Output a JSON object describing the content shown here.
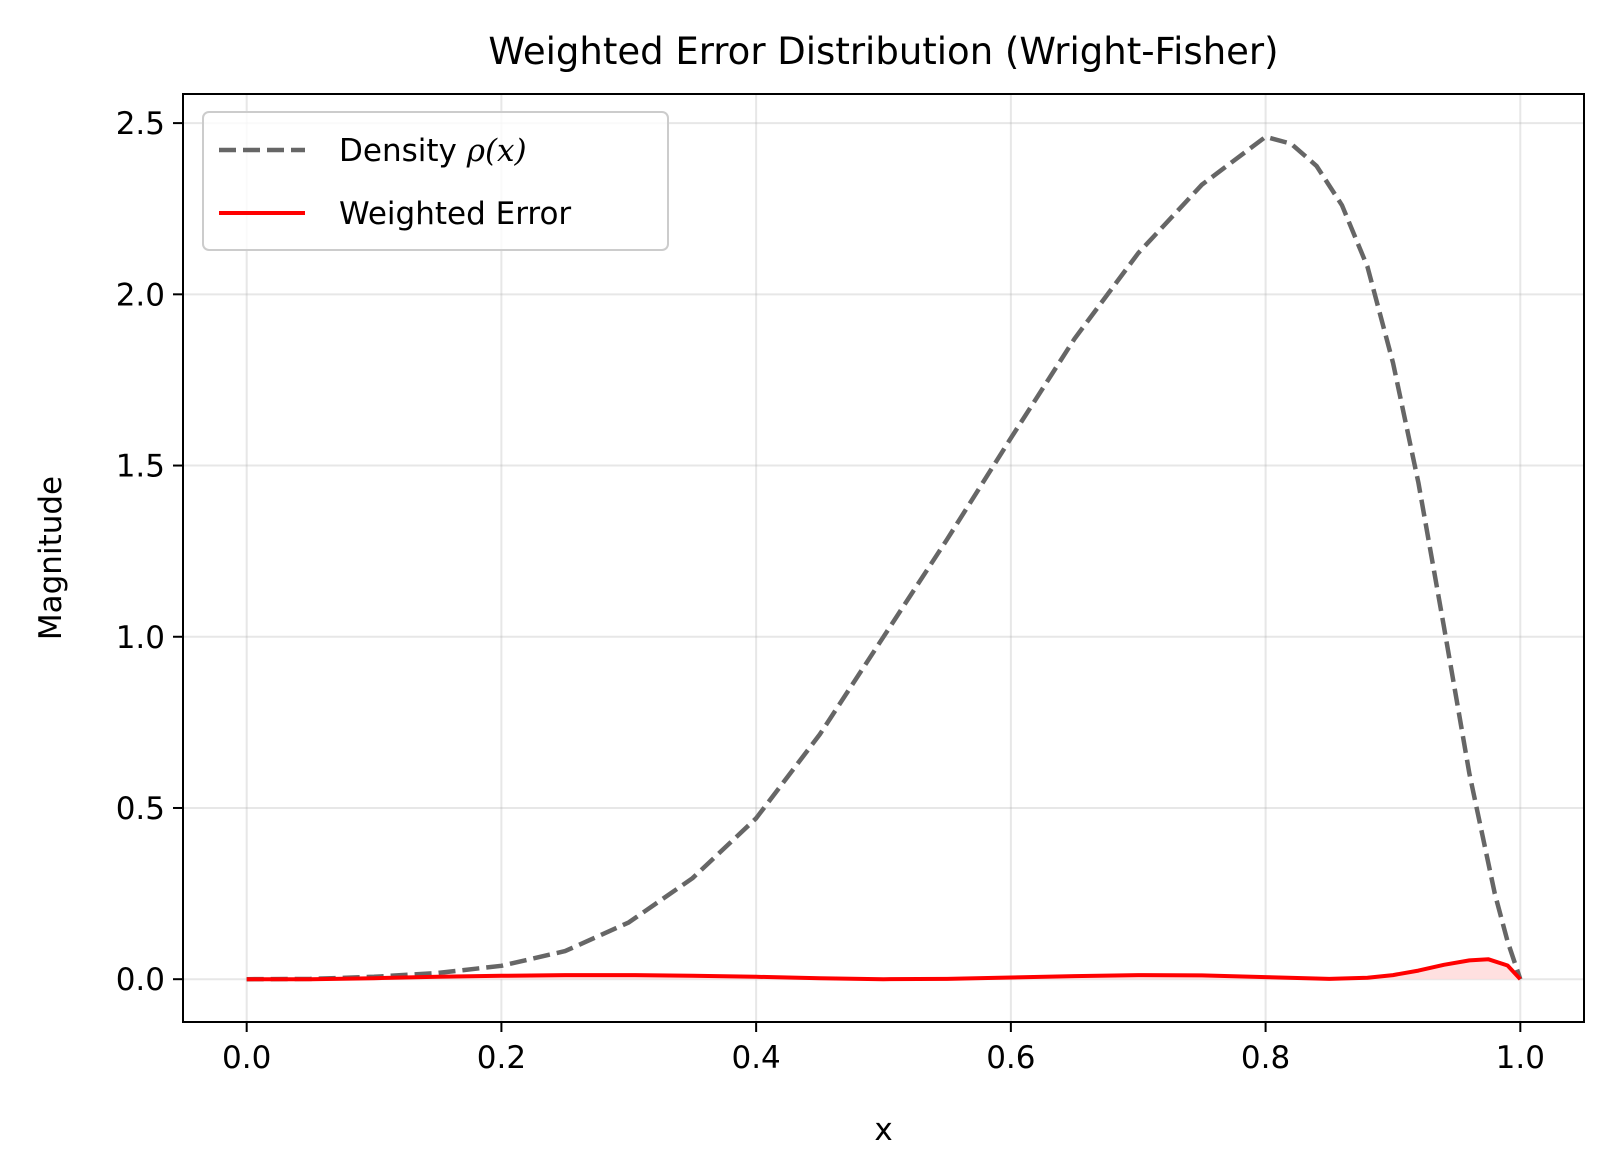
{
  "chart_data": {
    "type": "line",
    "title": "Weighted Error Distribution (Wright-Fisher)",
    "xlabel": "x",
    "ylabel": "Magnitude",
    "xlim": [
      -0.05,
      1.05
    ],
    "ylim": [
      -0.125,
      2.585
    ],
    "xticks": [
      0.0,
      0.2,
      0.4,
      0.6,
      0.8,
      1.0
    ],
    "xtick_labels": [
      "0.0",
      "0.2",
      "0.4",
      "0.6",
      "0.8",
      "1.0"
    ],
    "yticks": [
      0.0,
      0.5,
      1.0,
      1.5,
      2.0,
      2.5
    ],
    "ytick_labels": [
      "0.0",
      "0.5",
      "1.0",
      "1.5",
      "2.0",
      "2.5"
    ],
    "grid": true,
    "legend_position": "upper left",
    "legend": [
      {
        "label_prefix": "Density ",
        "label_math": "ρ(x)",
        "style": "dashed",
        "color": "#666666"
      },
      {
        "label": "Weighted Error",
        "style": "solid",
        "color": "#ff0000"
      }
    ],
    "series": [
      {
        "name": "Density ρ(x)",
        "style": "dashed",
        "color": "#666666",
        "x": [
          0.0,
          0.05,
          0.1,
          0.15,
          0.2,
          0.25,
          0.3,
          0.35,
          0.4,
          0.45,
          0.5,
          0.55,
          0.6,
          0.65,
          0.7,
          0.75,
          0.8,
          0.82,
          0.84,
          0.86,
          0.88,
          0.9,
          0.92,
          0.94,
          0.96,
          0.98,
          0.99,
          1.0
        ],
        "y": [
          0.0,
          0.001,
          0.007,
          0.018,
          0.039,
          0.082,
          0.166,
          0.295,
          0.47,
          0.715,
          1.0,
          1.285,
          1.58,
          1.87,
          2.12,
          2.32,
          2.46,
          2.44,
          2.375,
          2.26,
          2.08,
          1.8,
          1.45,
          1.03,
          0.6,
          0.25,
          0.11,
          0.0
        ]
      },
      {
        "name": "Weighted Error",
        "style": "solid",
        "color": "#ff0000",
        "fill": "#ffdddd",
        "x": [
          0.0,
          0.05,
          0.1,
          0.15,
          0.2,
          0.25,
          0.3,
          0.35,
          0.4,
          0.45,
          0.5,
          0.55,
          0.6,
          0.65,
          0.7,
          0.75,
          0.8,
          0.85,
          0.88,
          0.9,
          0.92,
          0.94,
          0.96,
          0.975,
          0.99,
          1.0
        ],
        "y": [
          0.0,
          0.0,
          0.003,
          0.007,
          0.01,
          0.012,
          0.012,
          0.01,
          0.007,
          0.003,
          0.0,
          0.001,
          0.005,
          0.009,
          0.012,
          0.011,
          0.006,
          0.001,
          0.004,
          0.012,
          0.025,
          0.042,
          0.055,
          0.058,
          0.04,
          0.0
        ]
      }
    ]
  }
}
